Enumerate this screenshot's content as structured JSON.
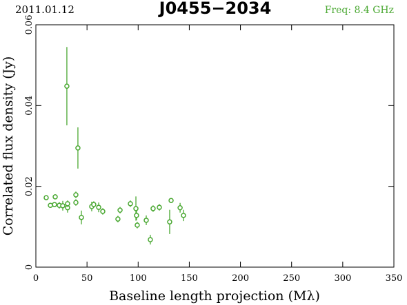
{
  "chart_data": {
    "type": "scatter",
    "date": "2011.01.12",
    "title": "J0455−2034",
    "frequency": "Freq: 8.4 GHz",
    "xlabel": "Baseline length projection (Mλ)",
    "ylabel": "Correlated flux density (Jy)",
    "color": "#4aa832",
    "x": [
      10.1,
      14.2,
      18.9,
      18.2,
      22.9,
      26.3,
      30.3,
      31.0,
      31.0,
      39.1,
      39.1,
      41.1,
      44.5,
      54.6,
      56.6,
      61.4,
      65.4,
      80.2,
      82.3,
      92.4,
      97.8,
      98.4,
      99.1,
      107.9,
      111.9,
      114.6,
      120.7,
      130.8,
      132.2,
      141.0,
      144.3
    ],
    "values": [
      0.0172,
      0.0153,
      0.0174,
      0.0155,
      0.0153,
      0.0152,
      0.0448,
      0.0147,
      0.0157,
      0.0179,
      0.016,
      0.0295,
      0.0123,
      0.015,
      0.0155,
      0.0148,
      0.0138,
      0.0119,
      0.0141,
      0.0157,
      0.0145,
      0.0128,
      0.0104,
      0.0116,
      0.0068,
      0.0145,
      0.0148,
      0.0112,
      0.0165,
      0.0147,
      0.0128
    ],
    "errors": [
      0.0006,
      0.0006,
      0.0006,
      0.0006,
      0.0008,
      0.0012,
      0.0097,
      0.0012,
      0.0008,
      0.0008,
      0.0008,
      0.0051,
      0.0017,
      0.0012,
      0.0008,
      0.0012,
      0.0008,
      0.0008,
      0.0008,
      0.0008,
      0.003,
      0.0012,
      0.0008,
      0.0012,
      0.0012,
      0.0008,
      0.0008,
      0.003,
      0.0006,
      0.0012,
      0.0014
    ],
    "xlim": [
      0,
      350
    ],
    "xticks": [
      0,
      50,
      100,
      150,
      200,
      250,
      300,
      350
    ],
    "ylim": [
      0,
      0.06
    ],
    "yticks": [
      0,
      0.02,
      0.04,
      0.06
    ]
  }
}
